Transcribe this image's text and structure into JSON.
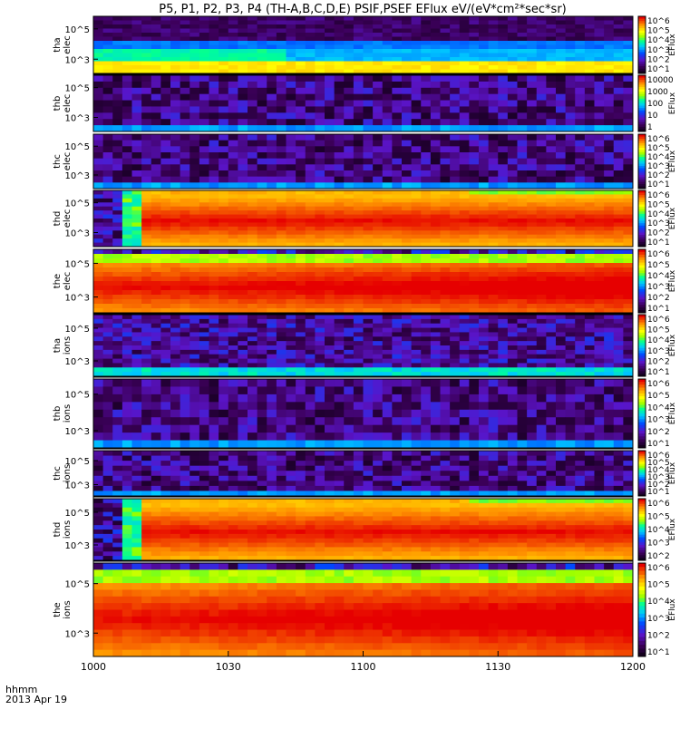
{
  "chart_data": {
    "type": "heatmap",
    "title": "P5, P1, P2, P3, P4 (TH-A,B,C,D,E) PSIF,PSEF EFlux eV/(eV*cm²*sec*sr)",
    "x_ticks": [
      "1000",
      "1030",
      "1100",
      "1130",
      "1200"
    ],
    "x_label_line1": "hhmm",
    "x_label_line2": "2013 Apr 19",
    "colorbar_label": "EFlux",
    "panels": [
      {
        "label_top": "tha",
        "label_bottom": "elec",
        "y_ticks": [
          "10^5",
          "10^3"
        ],
        "cb_ticks": [
          "10^6",
          "10^5",
          "10^4",
          "10^3",
          "10^2",
          "10^1"
        ],
        "pattern": "low",
        "strip": "yellow"
      },
      {
        "label_top": "thb",
        "label_bottom": "elec",
        "y_ticks": [
          "10^5",
          "10^3"
        ],
        "cb_ticks": [
          "10000",
          "1000",
          "100",
          "10",
          "1"
        ],
        "pattern": "blocky",
        "strip": ""
      },
      {
        "label_top": "thc",
        "label_bottom": "elec",
        "y_ticks": [
          "10^5",
          "10^3"
        ],
        "cb_ticks": [
          "10^6",
          "10^5",
          "10^4",
          "10^3",
          "10^2",
          "10^1"
        ],
        "pattern": "blocky",
        "strip": ""
      },
      {
        "label_top": "thd",
        "label_bottom": "elec",
        "y_ticks": [
          "10^5",
          "10^3"
        ],
        "cb_ticks": [
          "10^6",
          "10^5",
          "10^4",
          "10^3",
          "10^2",
          "10^1"
        ],
        "pattern": "hot",
        "strip": ""
      },
      {
        "label_top": "the",
        "label_bottom": "elec",
        "y_ticks": [
          "10^5",
          "10^3"
        ],
        "cb_ticks": [
          "10^6",
          "10^5",
          "10^4",
          "10^3",
          "10^2",
          "10^1"
        ],
        "pattern": "hot2",
        "strip": "red"
      },
      {
        "label_top": "tha",
        "label_bottom": "ions",
        "y_ticks": [
          "10^5",
          "10^3"
        ],
        "cb_ticks": [
          "10^6",
          "10^5",
          "10^4",
          "10^3",
          "10^2",
          "10^1"
        ],
        "pattern": "noisy",
        "strip": "yellow"
      },
      {
        "label_top": "thb",
        "label_bottom": "ions",
        "y_ticks": [
          "10^5",
          "10^3"
        ],
        "cb_ticks": [
          "10^6",
          "10^5",
          "10^4",
          "10^3",
          "10^2",
          "10^1"
        ],
        "pattern": "blocky",
        "strip": "yellow"
      },
      {
        "label_top": "thc",
        "label_bottom": "ions",
        "y_ticks": [
          "10^5",
          "10^3"
        ],
        "cb_ticks": [
          "10^6",
          "10^5",
          "10^4",
          "10^3",
          "10^2",
          "10^1"
        ],
        "pattern": "blocky",
        "strip": "red"
      },
      {
        "label_top": "thd",
        "label_bottom": "ions",
        "y_ticks": [
          "10^5",
          "10^3"
        ],
        "cb_ticks": [
          "10^6",
          "10^5",
          "10^4",
          "10^3",
          "10^2"
        ],
        "pattern": "hot",
        "strip": "red"
      },
      {
        "label_top": "the",
        "label_bottom": "ions",
        "y_ticks": [
          "10^5",
          "10^3"
        ],
        "cb_ticks": [
          "10^6",
          "10^5",
          "10^4",
          "10^3",
          "10^2",
          "10^1"
        ],
        "pattern": "hot2",
        "strip": ""
      }
    ]
  }
}
